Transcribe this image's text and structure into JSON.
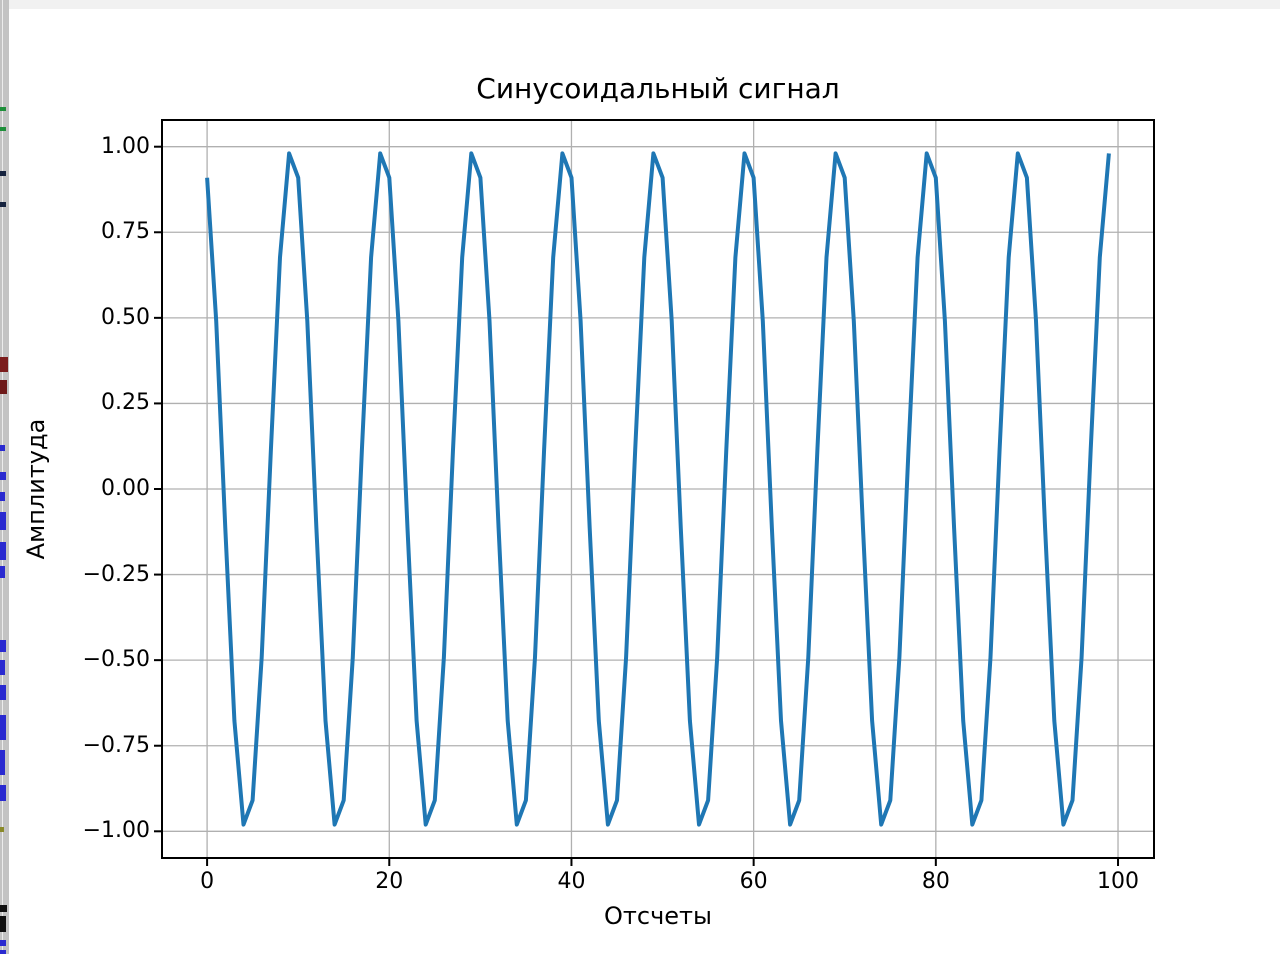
{
  "colors": {
    "line": "#1f77b4",
    "grid": "#b0b0b0",
    "spine": "#000000",
    "background": "#ffffff",
    "top_bar": "#f1f1f1",
    "edge_strip": "#c3c3c3"
  },
  "chart_data": {
    "type": "line",
    "title": "Синусоидальный сигнал",
    "xlabel": "Отсчеты",
    "ylabel": "Амплитуда",
    "grid": true,
    "legend": false,
    "xlim": [
      -4.95,
      103.95
    ],
    "ylim": [
      -1.078,
      1.078
    ],
    "xticks": [
      0,
      20,
      40,
      60,
      80,
      100
    ],
    "xtick_labels": [
      "0",
      "20",
      "40",
      "60",
      "80",
      "100"
    ],
    "yticks": [
      1.0,
      0.75,
      0.5,
      0.25,
      0.0,
      -0.25,
      -0.5,
      -0.75,
      -1.0
    ],
    "ytick_labels": [
      "1.00",
      "0.75",
      "0.50",
      "0.25",
      "0.00",
      "−0.25",
      "−0.50",
      "−0.75",
      "−1.00"
    ],
    "series": [
      {
        "name": "Синусоидальный сигнал",
        "x": [
          0,
          1,
          2,
          3,
          4,
          5,
          6,
          7,
          8,
          9,
          10,
          11,
          12,
          13,
          14,
          15,
          16,
          17,
          18,
          19,
          20,
          21,
          22,
          23,
          24,
          25,
          26,
          27,
          28,
          29,
          30,
          31,
          32,
          33,
          34,
          35,
          36,
          37,
          38,
          39,
          40,
          41,
          42,
          43,
          44,
          45,
          46,
          47,
          48,
          49,
          50,
          51,
          52,
          53,
          54,
          55,
          56,
          57,
          58,
          59,
          60,
          61,
          62,
          63,
          64,
          65,
          66,
          67,
          68,
          69,
          70,
          71,
          72,
          73,
          74,
          75,
          76,
          77,
          78,
          79,
          80,
          81,
          82,
          83,
          84,
          85,
          86,
          87,
          88,
          89,
          90,
          91,
          92,
          93,
          94,
          95,
          96,
          97,
          98,
          99
        ],
        "y": [
          0.9093,
          0.491,
          -0.1148,
          -0.6768,
          -0.9803,
          -0.9093,
          -0.491,
          0.1148,
          0.6768,
          0.9803,
          0.9093,
          0.491,
          -0.1148,
          -0.6768,
          -0.9803,
          -0.9093,
          -0.491,
          0.1148,
          0.6768,
          0.9803,
          0.9093,
          0.491,
          -0.1148,
          -0.6768,
          -0.9803,
          -0.9093,
          -0.491,
          0.1148,
          0.6768,
          0.9803,
          0.9093,
          0.491,
          -0.1148,
          -0.6768,
          -0.9803,
          -0.9093,
          -0.491,
          0.1148,
          0.6768,
          0.9803,
          0.9093,
          0.491,
          -0.1148,
          -0.6768,
          -0.9803,
          -0.9093,
          -0.491,
          0.1148,
          0.6768,
          0.9803,
          0.9093,
          0.491,
          -0.1148,
          -0.6768,
          -0.9803,
          -0.9093,
          -0.491,
          0.1148,
          0.6768,
          0.9803,
          0.9093,
          0.491,
          -0.1148,
          -0.6768,
          -0.9803,
          -0.9093,
          -0.491,
          0.1148,
          0.6768,
          0.9803,
          0.9093,
          0.491,
          -0.1148,
          -0.6768,
          -0.9803,
          -0.9093,
          -0.491,
          0.1148,
          0.6768,
          0.9803,
          0.9093,
          0.491,
          -0.1148,
          -0.6768,
          -0.9803,
          -0.9093,
          -0.491,
          0.1148,
          0.6768,
          0.9803,
          0.9093,
          0.491,
          -0.1148,
          -0.6768,
          -0.9803,
          -0.9093,
          -0.491,
          0.1148,
          0.6768,
          0.9803
        ]
      }
    ]
  }
}
